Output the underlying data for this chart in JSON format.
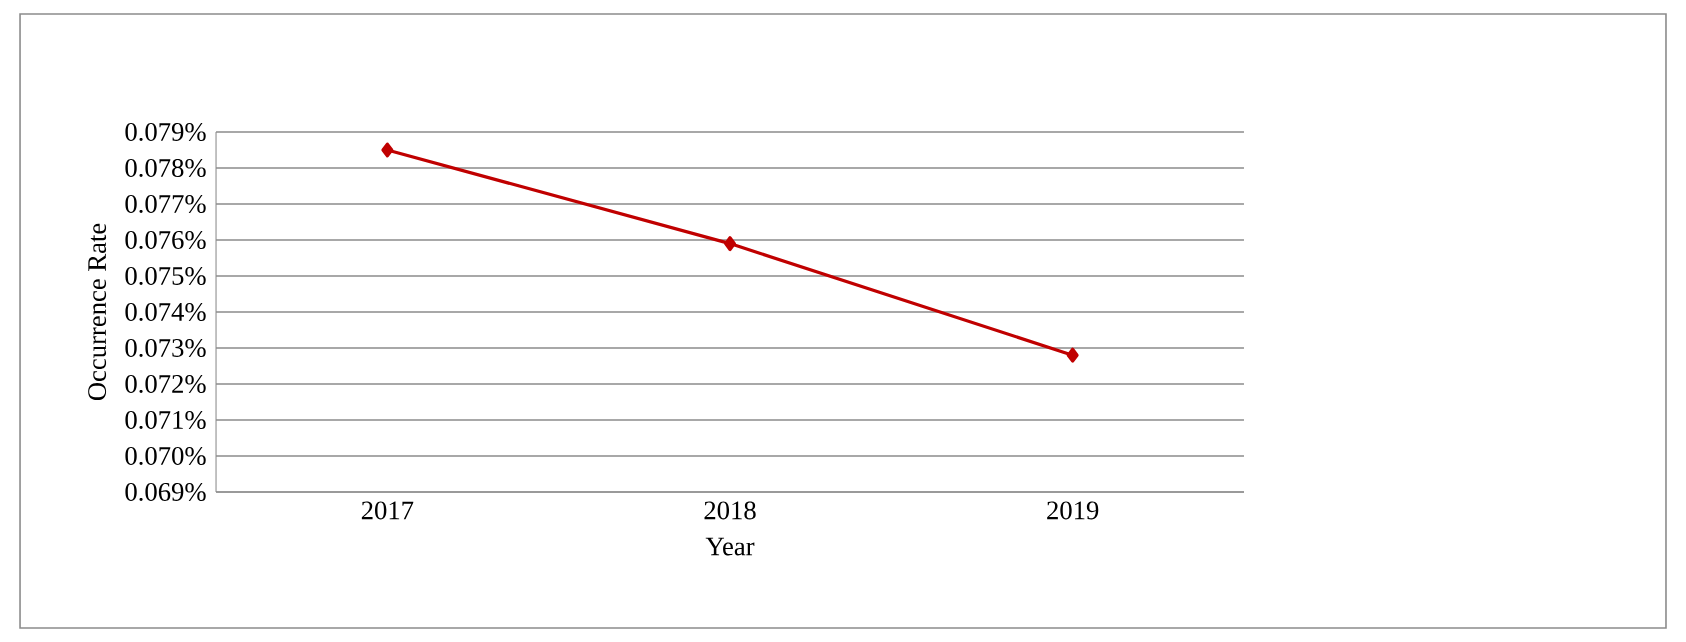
{
  "chart_data": {
    "type": "line",
    "xlabel": "Year",
    "ylabel": "Occurrence Rate",
    "categories": [
      "2017",
      "2018",
      "2019"
    ],
    "series": [
      {
        "color": "#c00000",
        "values": [
          0.0785,
          0.0759,
          0.0728
        ]
      }
    ],
    "ylim": [
      0.069,
      0.079
    ],
    "yticks": [
      {
        "value": 0.069,
        "label": "0.069%"
      },
      {
        "value": 0.07,
        "label": "0.070%"
      },
      {
        "value": 0.071,
        "label": "0.071%"
      },
      {
        "value": 0.072,
        "label": "0.072%"
      },
      {
        "value": 0.073,
        "label": "0.073%"
      },
      {
        "value": 0.074,
        "label": "0.074%"
      },
      {
        "value": 0.075,
        "label": "0.075%"
      },
      {
        "value": 0.076,
        "label": "0.076%"
      },
      {
        "value": 0.077,
        "label": "0.077%"
      },
      {
        "value": 0.078,
        "label": "0.078%"
      },
      {
        "value": 0.079,
        "label": "0.079%"
      }
    ],
    "grid": "y",
    "marker": "diamond",
    "line_style": "solid"
  }
}
